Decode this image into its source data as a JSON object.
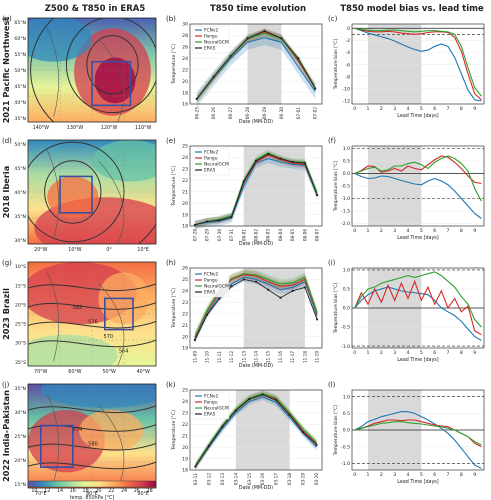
{
  "column_titles": [
    "Z500 & T850 in ERA5",
    "T850 time evolution",
    "T850 model bias vs. lead time"
  ],
  "row_labels": [
    "2021 Pacific Northwest",
    "2018 Iberia",
    "2023 Brazil",
    "2022 India-Pakistan"
  ],
  "colors": {
    "FCNv2": "#1f77b4",
    "Pangu": "#d62728",
    "NeuralGCM": "#2ca02c",
    "ERA5": "#222222",
    "shade": "#d9d9d9",
    "map_contour": "#333333",
    "map_box": "#3a4fa0"
  },
  "colorbar": {
    "label": "temp. 850hPa [°C]",
    "ticks": [
      "10",
      "12",
      "14",
      "16",
      "18",
      "20",
      "22",
      "24",
      "26",
      "28"
    ],
    "stops": [
      "#5e4fa2",
      "#3288bd",
      "#66c2a5",
      "#abdda4",
      "#e6f598",
      "#fee08b",
      "#fdae61",
      "#f46d43",
      "#d53e4f",
      "#9e0142"
    ]
  },
  "maps": [
    {
      "panel": "(a)",
      "xticks": [
        "140°W",
        "130°W",
        "120°W",
        "110°W"
      ],
      "yticks": [
        "65°N",
        "60°N",
        "55°N",
        "50°N",
        "45°N",
        "40°N",
        "35°N"
      ],
      "contour_labels": [],
      "field": "warm-center"
    },
    {
      "panel": "(d)",
      "xticks": [
        "20°W",
        "10°W",
        "0°",
        "10°E"
      ],
      "yticks": [
        "50°N",
        "45°N",
        "40°N",
        "35°N",
        "30°N"
      ],
      "contour_labels": [],
      "field": "iberia"
    },
    {
      "panel": "(g)",
      "xticks": [
        "70°W",
        "60°W",
        "50°W",
        "40°W"
      ],
      "yticks": [
        "10°S",
        "15°S",
        "20°S",
        "25°S",
        "30°S",
        "35°S"
      ],
      "contour_labels": [
        "582",
        "576",
        "570",
        "564"
      ],
      "field": "brazil"
    },
    {
      "panel": "(j)",
      "xticks": [
        "70°E",
        "80°E",
        "90°E"
      ],
      "yticks": [
        "35°N",
        "30°N",
        "25°N",
        "20°N",
        "15°N"
      ],
      "contour_labels": [
        "574",
        "580"
      ],
      "field": "india"
    }
  ],
  "chart_data": [
    {
      "panel": "(b)",
      "type": "line",
      "title": "T850 time evolution",
      "xlabel": "Date (MM-DD)",
      "ylabel": "Temperature [°C]",
      "categories": [
        "06-25",
        "06-26",
        "06-27",
        "06-28",
        "06-29",
        "06-30",
        "07-01",
        "07-02"
      ],
      "ylim": [
        16,
        30
      ],
      "yticks": [
        16,
        18,
        20,
        22,
        24,
        26,
        28,
        30
      ],
      "shade_x": [
        3,
        5
      ],
      "series": [
        {
          "name": "FCNv2",
          "values": [
            16.8,
            20.5,
            24.0,
            26.8,
            27.6,
            26.8,
            22.5,
            18.2
          ]
        },
        {
          "name": "Pangu",
          "values": [
            16.9,
            20.6,
            24.3,
            27.3,
            28.6,
            27.5,
            23.5,
            18.8
          ]
        },
        {
          "name": "NeuralGCM",
          "values": [
            16.8,
            20.7,
            24.3,
            27.4,
            28.4,
            27.4,
            23.8,
            18.9
          ]
        },
        {
          "name": "ERA5",
          "values": [
            16.9,
            20.8,
            24.4,
            27.5,
            28.8,
            27.5,
            24.0,
            18.7
          ]
        }
      ],
      "band_halfwidth": {
        "FCNv2": 1.3,
        "Pangu": 0.7,
        "NeuralGCM": 0.7
      }
    },
    {
      "panel": "(e)",
      "type": "line",
      "xlabel": "Date (MM-DD)",
      "ylabel": "Temperature [°C]",
      "categories": [
        "07-28",
        "07-29",
        "07-30",
        "07-31",
        "08-01",
        "08-02",
        "08-03",
        "08-04",
        "08-05",
        "08-06",
        "08-07"
      ],
      "ylim": [
        18,
        25
      ],
      "yticks": [
        18,
        19,
        20,
        21,
        22,
        23,
        24,
        25
      ],
      "shade_x": [
        4,
        9
      ],
      "series": [
        {
          "name": "FCNv2",
          "values": [
            18.1,
            18.3,
            18.4,
            18.7,
            21.5,
            23.5,
            23.9,
            23.6,
            23.4,
            23.3,
            20.7
          ]
        },
        {
          "name": "Pangu",
          "values": [
            18.1,
            18.4,
            18.5,
            18.8,
            21.8,
            23.6,
            24.2,
            23.8,
            23.5,
            23.4,
            20.8
          ]
        },
        {
          "name": "NeuralGCM",
          "values": [
            18.1,
            18.4,
            18.6,
            18.9,
            22.0,
            23.8,
            24.4,
            23.9,
            23.6,
            23.6,
            20.9
          ]
        },
        {
          "name": "ERA5",
          "values": [
            18.1,
            18.4,
            18.5,
            18.8,
            21.9,
            23.7,
            24.3,
            23.9,
            23.6,
            23.5,
            20.7
          ]
        }
      ],
      "band_halfwidth": {
        "FCNv2": 0.4,
        "Pangu": 0.3,
        "NeuralGCM": 0.3
      }
    },
    {
      "panel": "(h)",
      "type": "line",
      "xlabel": "Date (MM-DD)",
      "ylabel": "Temperature [°C]",
      "categories": [
        "11-09",
        "11-10",
        "11-11",
        "11-12",
        "11-13",
        "11-14",
        "11-15",
        "11-16",
        "11-17",
        "11-18",
        "11-19"
      ],
      "ylim": [
        19,
        26
      ],
      "yticks": [
        19,
        20,
        21,
        22,
        23,
        24,
        25,
        26
      ],
      "shade_x": [
        4,
        9
      ],
      "series": [
        {
          "name": "FCNv2",
          "values": [
            19.8,
            22.0,
            23.5,
            24.6,
            25.2,
            25.0,
            24.6,
            24.1,
            24.3,
            24.8,
            21.8
          ]
        },
        {
          "name": "Pangu",
          "values": [
            19.9,
            22.2,
            23.8,
            25.0,
            25.4,
            25.3,
            24.8,
            24.4,
            24.5,
            25.0,
            22.0
          ]
        },
        {
          "name": "NeuralGCM",
          "values": [
            20.0,
            22.3,
            24.0,
            25.1,
            25.5,
            25.4,
            25.0,
            24.6,
            24.7,
            25.2,
            22.1
          ]
        },
        {
          "name": "ERA5",
          "values": [
            19.7,
            21.9,
            23.3,
            24.4,
            25.0,
            24.8,
            24.1,
            23.4,
            24.0,
            24.3,
            21.5
          ]
        }
      ],
      "band_halfwidth": {
        "FCNv2": 0.4,
        "Pangu": 0.4,
        "NeuralGCM": 0.4
      }
    },
    {
      "panel": "(k)",
      "type": "line",
      "xlabel": "Date (MM-DD)",
      "ylabel": "Temperature [°C]",
      "categories": [
        "03-11",
        "03-12",
        "03-13",
        "03-14",
        "03-15",
        "03-16",
        "03-17",
        "03-18",
        "03-19",
        "03-20"
      ],
      "ylim": [
        18,
        25
      ],
      "yticks": [
        18,
        19,
        20,
        21,
        22,
        23,
        24,
        25
      ],
      "shade_x": [
        3,
        7
      ],
      "series": [
        {
          "name": "FCNv2",
          "values": [
            18.3,
            20.0,
            21.6,
            23.0,
            24.0,
            24.4,
            23.9,
            22.6,
            21.2,
            20.0
          ]
        },
        {
          "name": "Pangu",
          "values": [
            18.3,
            20.1,
            21.8,
            23.2,
            24.2,
            24.6,
            24.2,
            22.9,
            21.4,
            20.3
          ]
        },
        {
          "name": "NeuralGCM",
          "values": [
            18.4,
            20.2,
            21.9,
            23.3,
            24.3,
            24.7,
            24.3,
            23.0,
            21.6,
            20.4
          ]
        },
        {
          "name": "ERA5",
          "values": [
            18.3,
            20.1,
            21.8,
            23.2,
            24.2,
            24.6,
            24.1,
            22.8,
            21.3,
            20.2
          ]
        }
      ],
      "band_halfwidth": {
        "FCNv2": 0.3,
        "Pangu": 0.3,
        "NeuralGCM": 0.3
      }
    },
    {
      "panel": "(c)",
      "type": "line",
      "title": "T850 model bias vs. lead time",
      "xlabel": "Lead Time [days]",
      "ylabel": "Temperature bias [°C]",
      "xticks": [
        0,
        1,
        2,
        3,
        4,
        5,
        6,
        7,
        8,
        9
      ],
      "ylim": [
        -12.5,
        0.7
      ],
      "yticks": [
        0,
        -2,
        -4,
        -6,
        -8,
        -10,
        -12
      ],
      "shade_x": [
        1,
        5
      ],
      "hlines": [
        0
      ],
      "dashed_hlines": [
        -1
      ],
      "x": [
        0,
        0.5,
        1,
        1.5,
        2,
        2.5,
        3,
        3.5,
        4,
        4.5,
        5,
        5.5,
        6,
        6.5,
        7,
        7.5,
        8,
        8.5,
        9,
        9.5
      ],
      "series": [
        {
          "name": "FCNv2",
          "values": [
            0,
            -0.4,
            -0.8,
            -1.1,
            -1.4,
            -1.7,
            -2.1,
            -2.6,
            -3.1,
            -3.5,
            -3.8,
            -3.6,
            -3.0,
            -2.6,
            -3.0,
            -4.8,
            -7.5,
            -10.2,
            -11.8,
            -12.0
          ]
        },
        {
          "name": "Pangu",
          "values": [
            0,
            -0.3,
            -0.5,
            -0.6,
            -0.6,
            -0.5,
            -0.6,
            -0.8,
            -0.9,
            -1.0,
            -0.9,
            -0.7,
            -0.6,
            -0.6,
            -0.7,
            -1.5,
            -3.8,
            -7.5,
            -10.8,
            -11.8
          ]
        },
        {
          "name": "NeuralGCM",
          "values": [
            0,
            -0.2,
            -0.3,
            -0.4,
            -0.4,
            -0.3,
            -0.3,
            -0.4,
            -0.5,
            -0.6,
            -0.5,
            -0.4,
            -0.4,
            -0.5,
            -0.6,
            -1.0,
            -3.0,
            -6.5,
            -9.8,
            -11.2
          ]
        }
      ]
    },
    {
      "panel": "(f)",
      "type": "line",
      "xlabel": "Lead Time [days]",
      "ylabel": "Temperature bias [°C]",
      "xticks": [
        0,
        1,
        2,
        3,
        4,
        5,
        6,
        7,
        8,
        9
      ],
      "ylim": [
        -2.1,
        1.1
      ],
      "yticks": [
        1.0,
        0.5,
        0.0,
        -0.5,
        -1.0,
        -1.5,
        -2.0
      ],
      "shade_x": [
        1,
        5
      ],
      "hlines": [
        0
      ],
      "dashed_hlines": [
        1.0,
        -1.0
      ],
      "x": [
        0,
        0.5,
        1,
        1.5,
        2,
        2.5,
        3,
        3.5,
        4,
        4.5,
        5,
        5.5,
        6,
        6.5,
        7,
        7.5,
        8,
        8.5,
        9,
        9.5
      ],
      "series": [
        {
          "name": "FCNv2",
          "values": [
            0,
            -0.12,
            -0.2,
            -0.18,
            -0.1,
            -0.12,
            -0.2,
            -0.28,
            -0.35,
            -0.42,
            -0.45,
            -0.3,
            -0.2,
            -0.3,
            -0.45,
            -0.7,
            -1.0,
            -1.3,
            -1.6,
            -1.8
          ]
        },
        {
          "name": "Pangu",
          "values": [
            0,
            0.12,
            0.3,
            0.28,
            0.05,
            0.1,
            0.2,
            0.1,
            0.3,
            0.2,
            0.15,
            0.35,
            0.55,
            0.7,
            0.65,
            0.45,
            0.2,
            -0.1,
            -0.35,
            -0.4
          ]
        },
        {
          "name": "NeuralGCM",
          "values": [
            0,
            0.1,
            0.2,
            0.25,
            0.1,
            0.15,
            0.3,
            0.3,
            0.4,
            0.45,
            0.35,
            0.2,
            0.45,
            0.6,
            0.7,
            0.6,
            0.4,
            0.1,
            -0.6,
            -1.1
          ]
        }
      ]
    },
    {
      "panel": "(i)",
      "type": "line",
      "xlabel": "Lead Time [days]",
      "ylabel": "Temperature bias [°C]",
      "xticks": [
        0,
        1,
        2,
        3,
        4,
        5,
        6,
        7,
        8,
        9
      ],
      "ylim": [
        -1.05,
        1.05
      ],
      "yticks": [
        1.0,
        0.5,
        0.0,
        -0.5,
        -1.0
      ],
      "shade_x": [
        1,
        5
      ],
      "hlines": [
        0
      ],
      "dashed_hlines": [
        1.0,
        -1.0
      ],
      "x": [
        0,
        0.5,
        1,
        1.5,
        2,
        2.5,
        3,
        3.5,
        4,
        4.5,
        5,
        5.5,
        6,
        6.5,
        7,
        7.5,
        8,
        8.5,
        9,
        9.5
      ],
      "series": [
        {
          "name": "FCNv2",
          "values": [
            0,
            0.2,
            0.35,
            0.45,
            0.5,
            0.55,
            0.5,
            0.45,
            0.42,
            0.4,
            0.38,
            0.35,
            0.2,
            0.0,
            -0.1,
            -0.2,
            -0.35,
            -0.55,
            -0.75,
            -0.85
          ]
        },
        {
          "name": "Pangu",
          "values": [
            0,
            0.4,
            0.1,
            0.5,
            0.15,
            0.6,
            0.2,
            0.65,
            0.25,
            0.7,
            0.2,
            0.55,
            0.1,
            0.45,
            0.0,
            0.25,
            -0.1,
            0.05,
            -0.6,
            -0.7
          ]
        },
        {
          "name": "NeuralGCM",
          "values": [
            0,
            0.3,
            0.5,
            0.55,
            0.65,
            0.7,
            0.75,
            0.8,
            0.85,
            0.8,
            0.85,
            0.9,
            0.95,
            0.85,
            0.7,
            0.55,
            0.3,
            0.1,
            -0.3,
            -0.5
          ]
        }
      ]
    },
    {
      "panel": "(l)",
      "type": "line",
      "xlabel": "Lead Time [days]",
      "ylabel": "Temperature bias [°C]",
      "xticks": [
        0,
        1,
        2,
        3,
        4,
        5,
        6,
        7,
        8,
        9
      ],
      "ylim": [
        -1.2,
        1.2
      ],
      "yticks": [
        1.0,
        0.5,
        0.0,
        -0.5,
        -1.0
      ],
      "shade_x": [
        1,
        5
      ],
      "hlines": [
        0
      ],
      "dashed_hlines": [
        1.0,
        -1.0
      ],
      "x": [
        0,
        0.5,
        1,
        1.5,
        2,
        2.5,
        3,
        3.5,
        4,
        4.5,
        5,
        5.5,
        6,
        6.5,
        7,
        7.5,
        8,
        8.5,
        9,
        9.5
      ],
      "series": [
        {
          "name": "FCNv2",
          "values": [
            0,
            0.1,
            0.25,
            0.32,
            0.4,
            0.45,
            0.5,
            0.55,
            0.55,
            0.5,
            0.4,
            0.3,
            0.18,
            0.05,
            -0.1,
            -0.3,
            -0.55,
            -0.8,
            -1.05,
            -1.15
          ]
        },
        {
          "name": "Pangu",
          "values": [
            0,
            0.05,
            0.12,
            0.2,
            0.25,
            0.3,
            0.3,
            0.28,
            0.3,
            0.3,
            0.25,
            0.2,
            0.15,
            0.12,
            0.1,
            0.0,
            -0.1,
            -0.2,
            -0.4,
            -0.5
          ]
        },
        {
          "name": "NeuralGCM",
          "values": [
            0,
            0.05,
            0.1,
            0.15,
            0.2,
            0.22,
            0.25,
            0.25,
            0.22,
            0.2,
            0.18,
            0.15,
            0.12,
            0.1,
            0.05,
            0.0,
            -0.1,
            -0.2,
            -0.35,
            -0.45
          ]
        }
      ]
    }
  ]
}
